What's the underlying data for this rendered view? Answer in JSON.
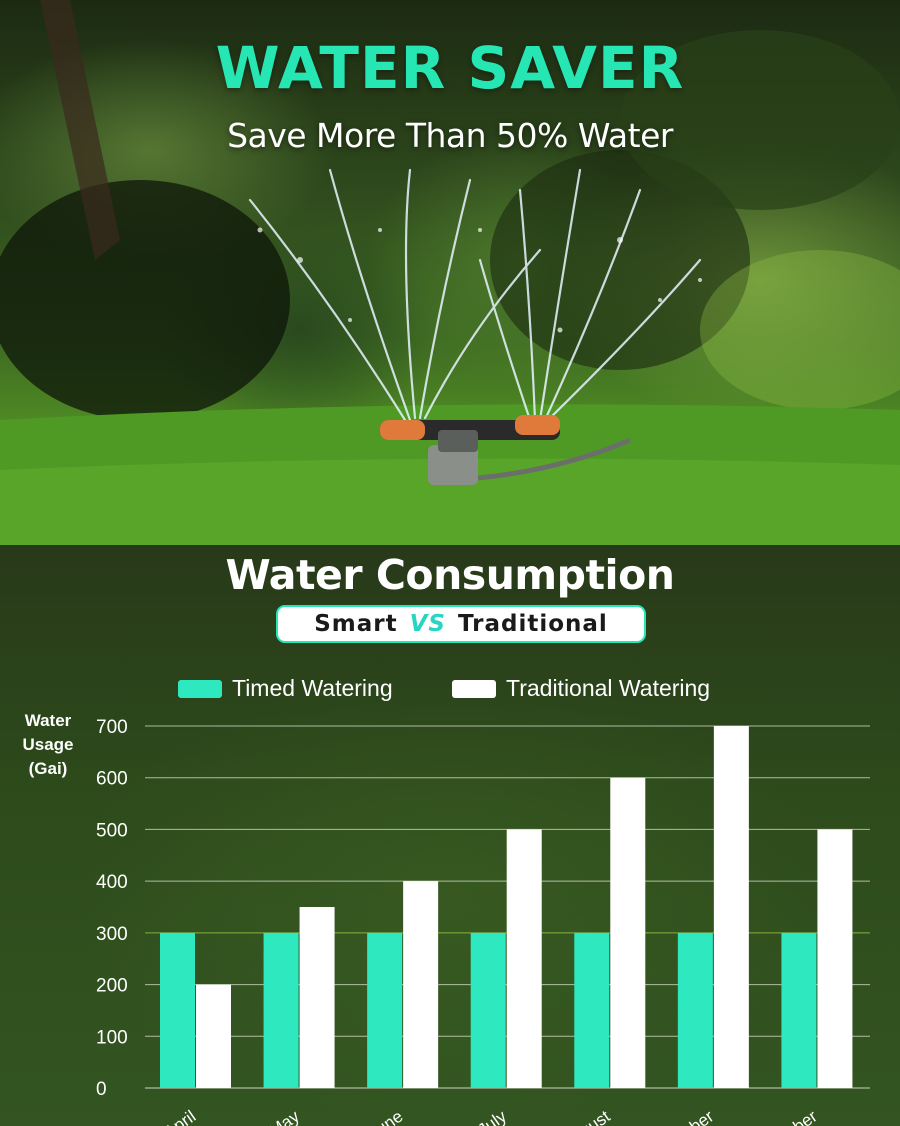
{
  "hero": {
    "title": "WATER SAVER",
    "subtitle": "Save More Than 50% Water"
  },
  "section": {
    "title": "Water Consumption",
    "badge": {
      "left": "Smart",
      "vs": "VS",
      "right": "Traditional"
    }
  },
  "colors": {
    "accent": "#26e6b4",
    "timed": "#2ee8bf",
    "traditional": "#ffffff",
    "grass_dark": "#2d4a1b"
  },
  "chart_data": {
    "type": "bar",
    "categories": [
      "April",
      "May",
      "June",
      "July",
      "August",
      "September",
      "October"
    ],
    "category_display": [
      "April",
      "May",
      "June",
      "July",
      "ugust",
      "tember",
      "ctober"
    ],
    "series": [
      {
        "name": "Timed Watering",
        "values": [
          300,
          300,
          300,
          300,
          300,
          300,
          300
        ]
      },
      {
        "name": "Traditional Watering",
        "values": [
          200,
          350,
          400,
          500,
          600,
          700,
          500
        ]
      }
    ],
    "ylabel": [
      "Water",
      "Usage",
      "(Gai)"
    ],
    "ylim": [
      0,
      700
    ],
    "yticks": [
      0,
      100,
      200,
      300,
      400,
      500,
      600,
      700
    ],
    "grid": true,
    "legend_position": "top"
  }
}
